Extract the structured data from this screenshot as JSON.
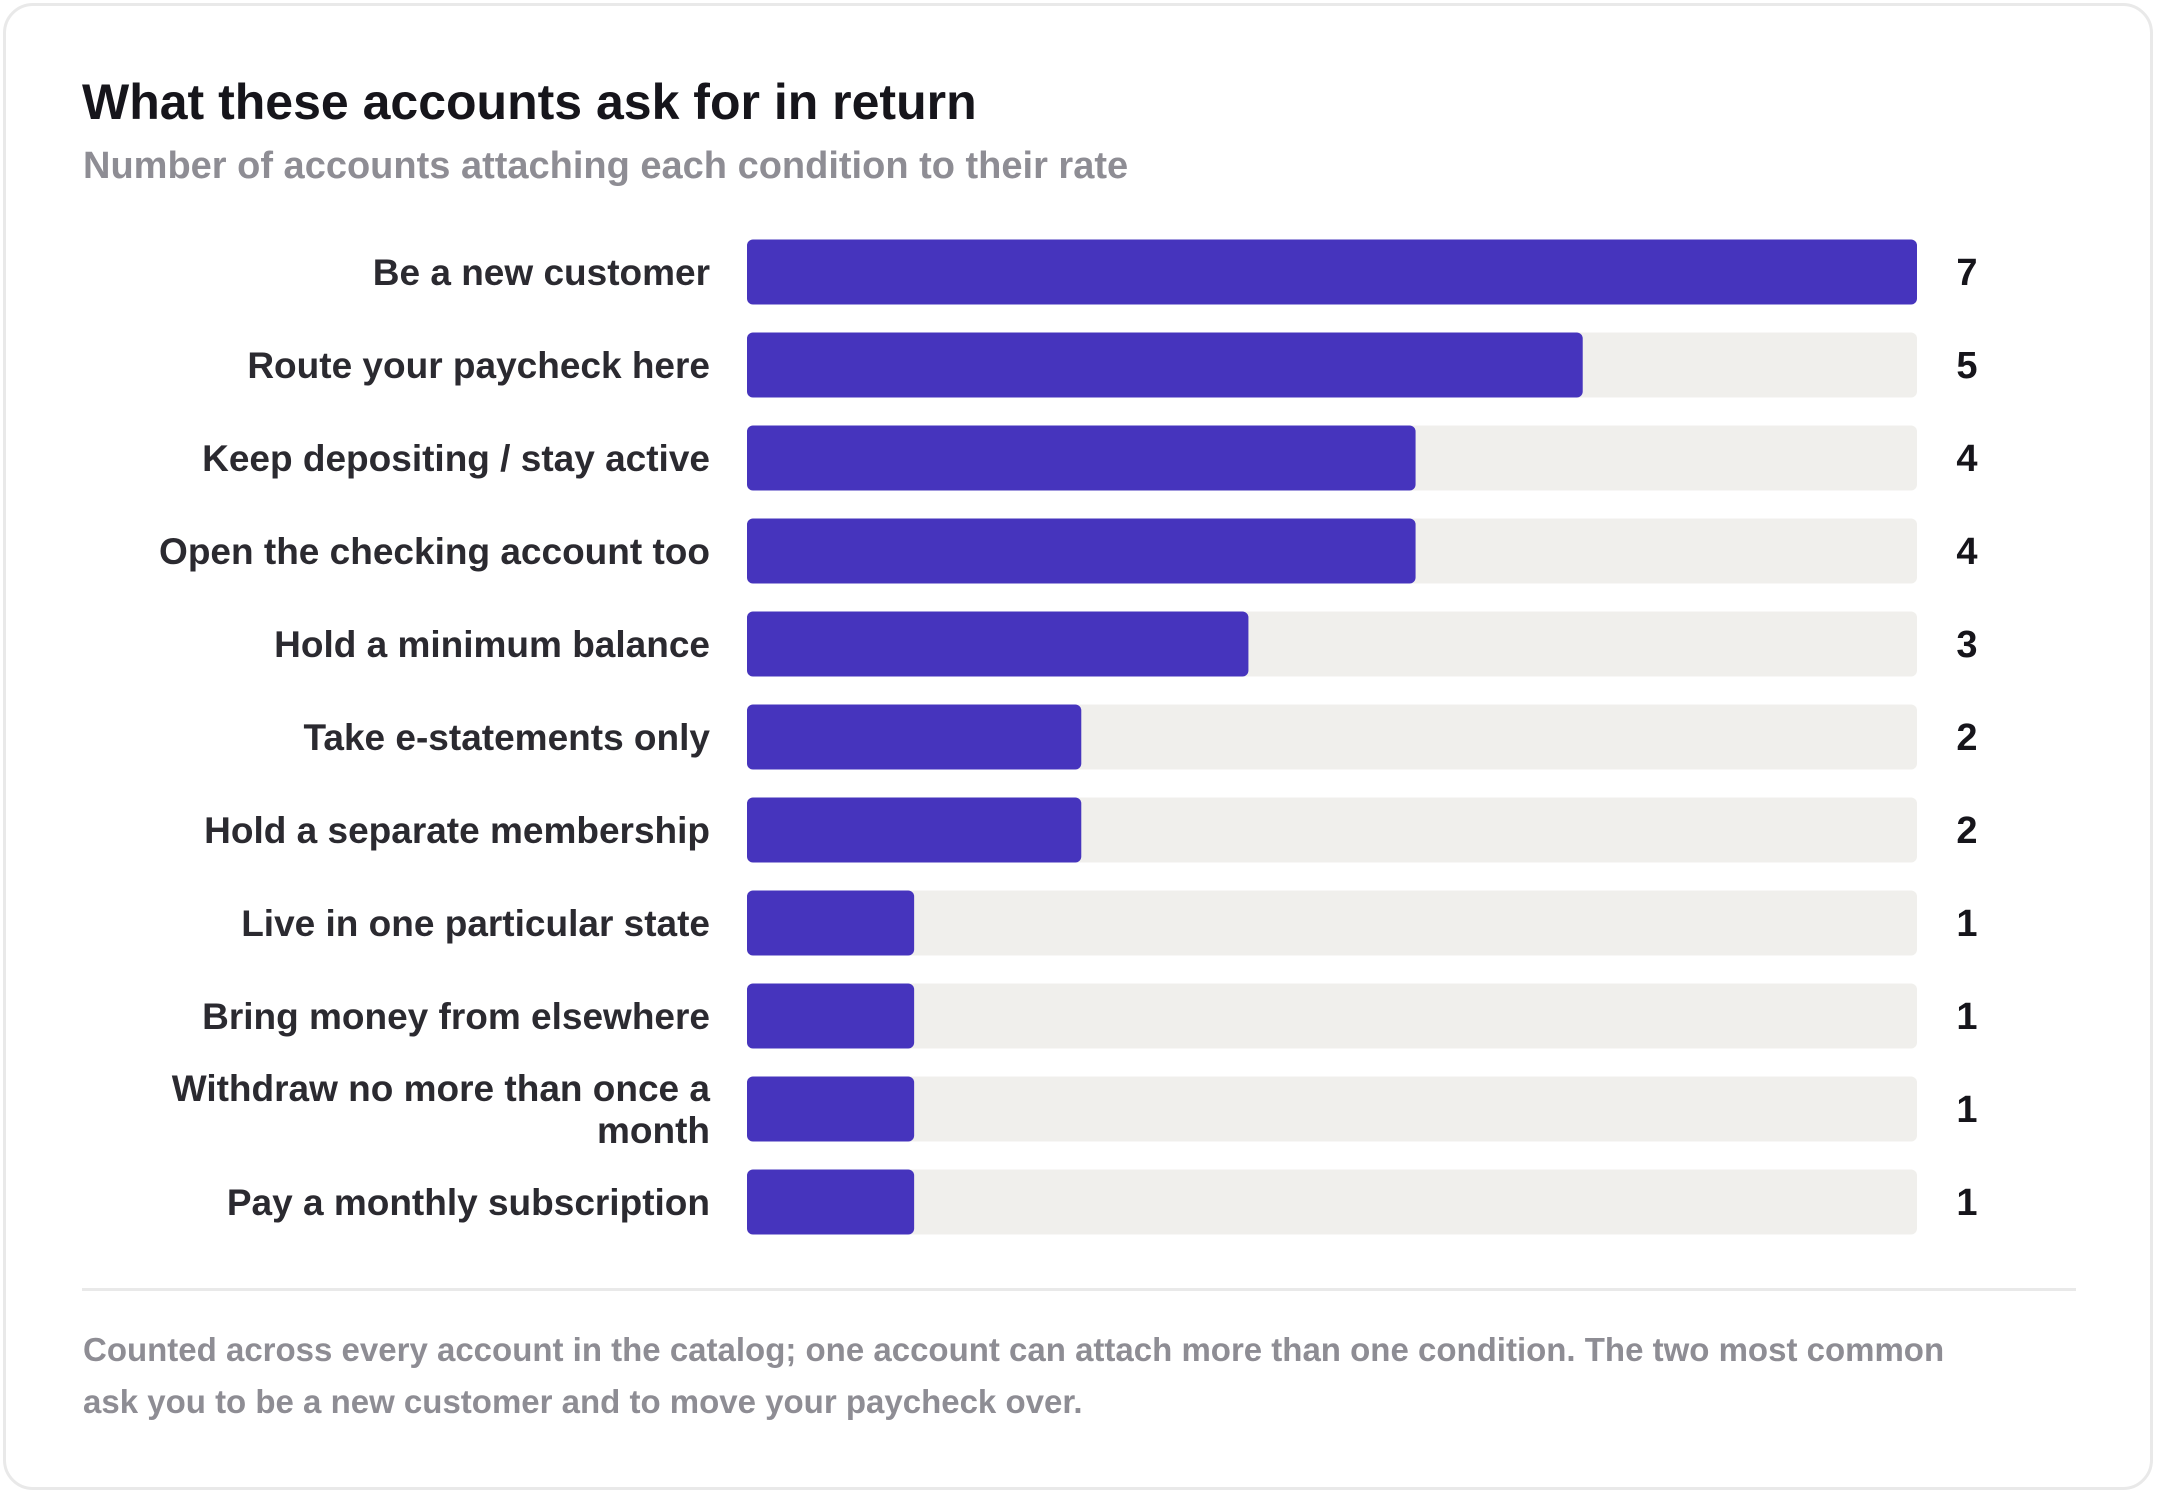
{
  "title": "What these accounts ask for in return",
  "subtitle": "Number of accounts attaching each condition to their rate",
  "footnote": "Counted across every account in the catalog; one account can attach more than one condition. The two most common ask you to be a new customer and to move your paycheck over.",
  "colors": {
    "bar": "#4634bd",
    "track": "#f0efec",
    "label": "#2b2a30",
    "value": "#16151b"
  },
  "chart_data": {
    "type": "bar",
    "orientation": "horizontal",
    "categories": [
      "Be a new customer",
      "Route your paycheck here",
      "Keep depositing / stay active",
      "Open the checking account too",
      "Hold a minimum balance",
      "Take e-statements only",
      "Hold a separate membership",
      "Live in one particular state",
      "Bring money from elsewhere",
      "Withdraw no more than once a month",
      "Pay a monthly subscription"
    ],
    "values": [
      7,
      5,
      4,
      4,
      3,
      2,
      2,
      1,
      1,
      1,
      1
    ],
    "xlim": [
      0,
      7
    ],
    "grid": false,
    "data_labels": true
  }
}
